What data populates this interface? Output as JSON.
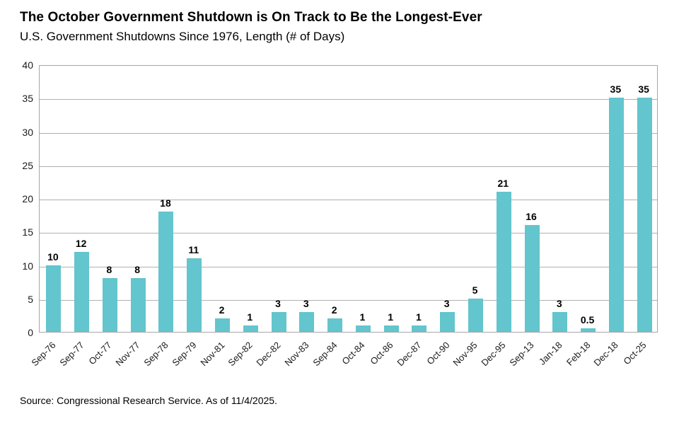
{
  "header": {
    "title": "The October Government Shutdown is On Track to Be the Longest-Ever",
    "subtitle": "U.S. Government Shutdowns Since 1976, Length (# of Days)"
  },
  "footer": {
    "source": "Source: Congressional Research Service. As of 11/4/2025."
  },
  "colors": {
    "bar": "#63C5CD",
    "gridline": "#B0B0B0",
    "plot_border": "#A6A6A6",
    "text": "#000000"
  },
  "chart_data": {
    "type": "bar",
    "title": "The October Government Shutdown is On Track to Be the Longest-Ever",
    "subtitle": "U.S. Government Shutdowns Since 1976, Length (# of Days)",
    "categories": [
      "Sep-76",
      "Sep-77",
      "Oct-77",
      "Nov-77",
      "Sep-78",
      "Sep-79",
      "Nov-81",
      "Sep-82",
      "Dec-82",
      "Nov-83",
      "Sep-84",
      "Oct-84",
      "Oct-86",
      "Dec-87",
      "Oct-90",
      "Nov-95",
      "Dec-95",
      "Sep-13",
      "Jan-18",
      "Feb-18",
      "Dec-18",
      "Oct-25"
    ],
    "values": [
      10,
      12,
      8,
      8,
      18,
      11,
      2,
      1,
      3,
      3,
      2,
      1,
      1,
      1,
      3,
      5,
      21,
      16,
      3,
      0.5,
      35,
      35
    ],
    "data_labels": [
      "10",
      "12",
      "8",
      "8",
      "18",
      "11",
      "2",
      "1",
      "3",
      "3",
      "2",
      "1",
      "1",
      "1",
      "3",
      "5",
      "21",
      "16",
      "3",
      "0.5",
      "35",
      "35"
    ],
    "xlabel": "",
    "ylabel": "",
    "ylim": [
      0,
      40
    ],
    "yticks": [
      0,
      5,
      10,
      15,
      20,
      25,
      30,
      35,
      40
    ],
    "grid": true,
    "legend": false
  }
}
